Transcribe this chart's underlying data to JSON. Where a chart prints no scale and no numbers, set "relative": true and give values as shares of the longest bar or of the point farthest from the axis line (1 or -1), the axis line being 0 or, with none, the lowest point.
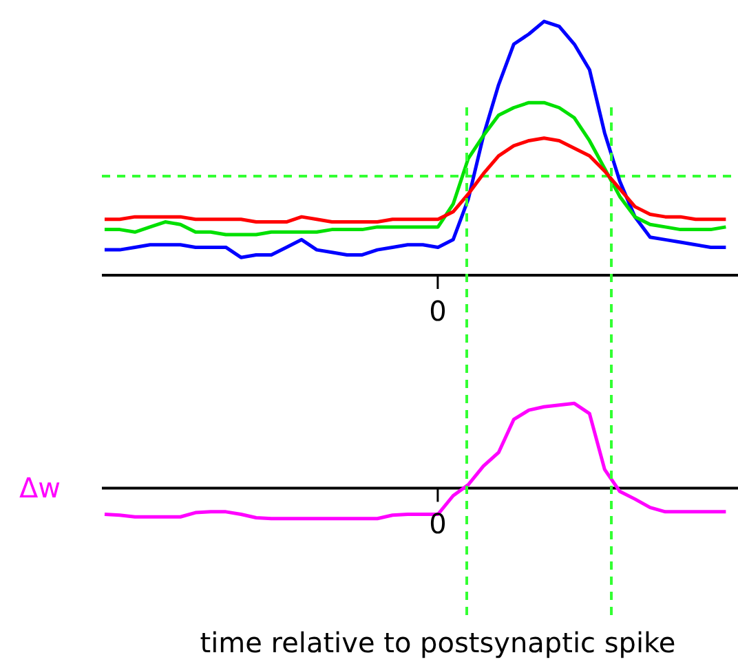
{
  "chart_data": [
    {
      "type": "line",
      "relative": true,
      "annotations": [
        "0"
      ],
      "categories": [
        null,
        null,
        null,
        null,
        null,
        null,
        null,
        null,
        null,
        null,
        null,
        null,
        null,
        null,
        null,
        null,
        null,
        null,
        null,
        null,
        null,
        null,
        null,
        null,
        null,
        null,
        null,
        null,
        null,
        null,
        null,
        null,
        null,
        null,
        null,
        null,
        null,
        null,
        null,
        null,
        null,
        null
      ],
      "series": [
        {
          "color": "#0000ff",
          "values": [
            0.1,
            0.1,
            0.11,
            0.12,
            0.12,
            0.12,
            0.11,
            0.11,
            0.11,
            0.07,
            0.08,
            0.08,
            0.11,
            0.14,
            0.1,
            0.09,
            0.08,
            0.08,
            0.1,
            0.11,
            0.12,
            0.12,
            0.11,
            0.14,
            0.3,
            0.55,
            0.75,
            0.91,
            0.95,
            1.0,
            0.98,
            0.91,
            0.81,
            0.56,
            0.37,
            0.23,
            0.15,
            0.14,
            0.13,
            0.12,
            0.11,
            0.11
          ]
        },
        {
          "color": "#00e000",
          "values": [
            0.18,
            0.18,
            0.17,
            0.19,
            0.21,
            0.2,
            0.17,
            0.17,
            0.16,
            0.16,
            0.16,
            0.17,
            0.17,
            0.17,
            0.17,
            0.18,
            0.18,
            0.18,
            0.19,
            0.19,
            0.19,
            0.19,
            0.19,
            0.28,
            0.46,
            0.55,
            0.63,
            0.66,
            0.68,
            0.68,
            0.66,
            0.62,
            0.53,
            0.42,
            0.31,
            0.23,
            0.2,
            0.19,
            0.18,
            0.18,
            0.18,
            0.19
          ]
        },
        {
          "color": "#ff0000",
          "values": [
            0.22,
            0.22,
            0.23,
            0.23,
            0.23,
            0.23,
            0.22,
            0.22,
            0.22,
            0.22,
            0.21,
            0.21,
            0.21,
            0.23,
            0.22,
            0.21,
            0.21,
            0.21,
            0.21,
            0.22,
            0.22,
            0.22,
            0.22,
            0.25,
            0.32,
            0.4,
            0.47,
            0.51,
            0.53,
            0.54,
            0.53,
            0.5,
            0.47,
            0.41,
            0.34,
            0.27,
            0.24,
            0.23,
            0.23,
            0.22,
            0.22,
            0.22
          ]
        }
      ],
      "ref_lines": [
        {
          "axis": "y",
          "value": 0.39,
          "color": "#33ff33",
          "line_style": "dashed"
        }
      ]
    },
    {
      "type": "line",
      "relative": true,
      "annotations": [
        "0"
      ],
      "ylabel": "Δw",
      "xlabel": "time relative to postsynaptic spike",
      "categories": [
        null,
        null,
        null,
        null,
        null,
        null,
        null,
        null,
        null,
        null,
        null,
        null,
        null,
        null,
        null,
        null,
        null,
        null,
        null,
        null,
        null,
        null,
        null,
        null,
        null,
        null,
        null,
        null,
        null,
        null,
        null,
        null,
        null,
        null,
        null,
        null,
        null,
        null,
        null,
        null,
        null,
        null
      ],
      "series": [
        {
          "color": "#ff00ff",
          "values": [
            -0.31,
            -0.32,
            -0.34,
            -0.34,
            -0.34,
            -0.34,
            -0.29,
            -0.28,
            -0.28,
            -0.31,
            -0.35,
            -0.36,
            -0.36,
            -0.36,
            -0.36,
            -0.36,
            -0.36,
            -0.36,
            -0.36,
            -0.32,
            -0.31,
            -0.31,
            -0.31,
            -0.09,
            0.04,
            0.26,
            0.42,
            0.81,
            0.92,
            0.96,
            0.98,
            1.0,
            0.88,
            0.22,
            -0.04,
            -0.13,
            -0.23,
            -0.28,
            -0.28,
            -0.28,
            -0.28,
            -0.28
          ]
        }
      ],
      "line_style": "solid"
    }
  ]
}
